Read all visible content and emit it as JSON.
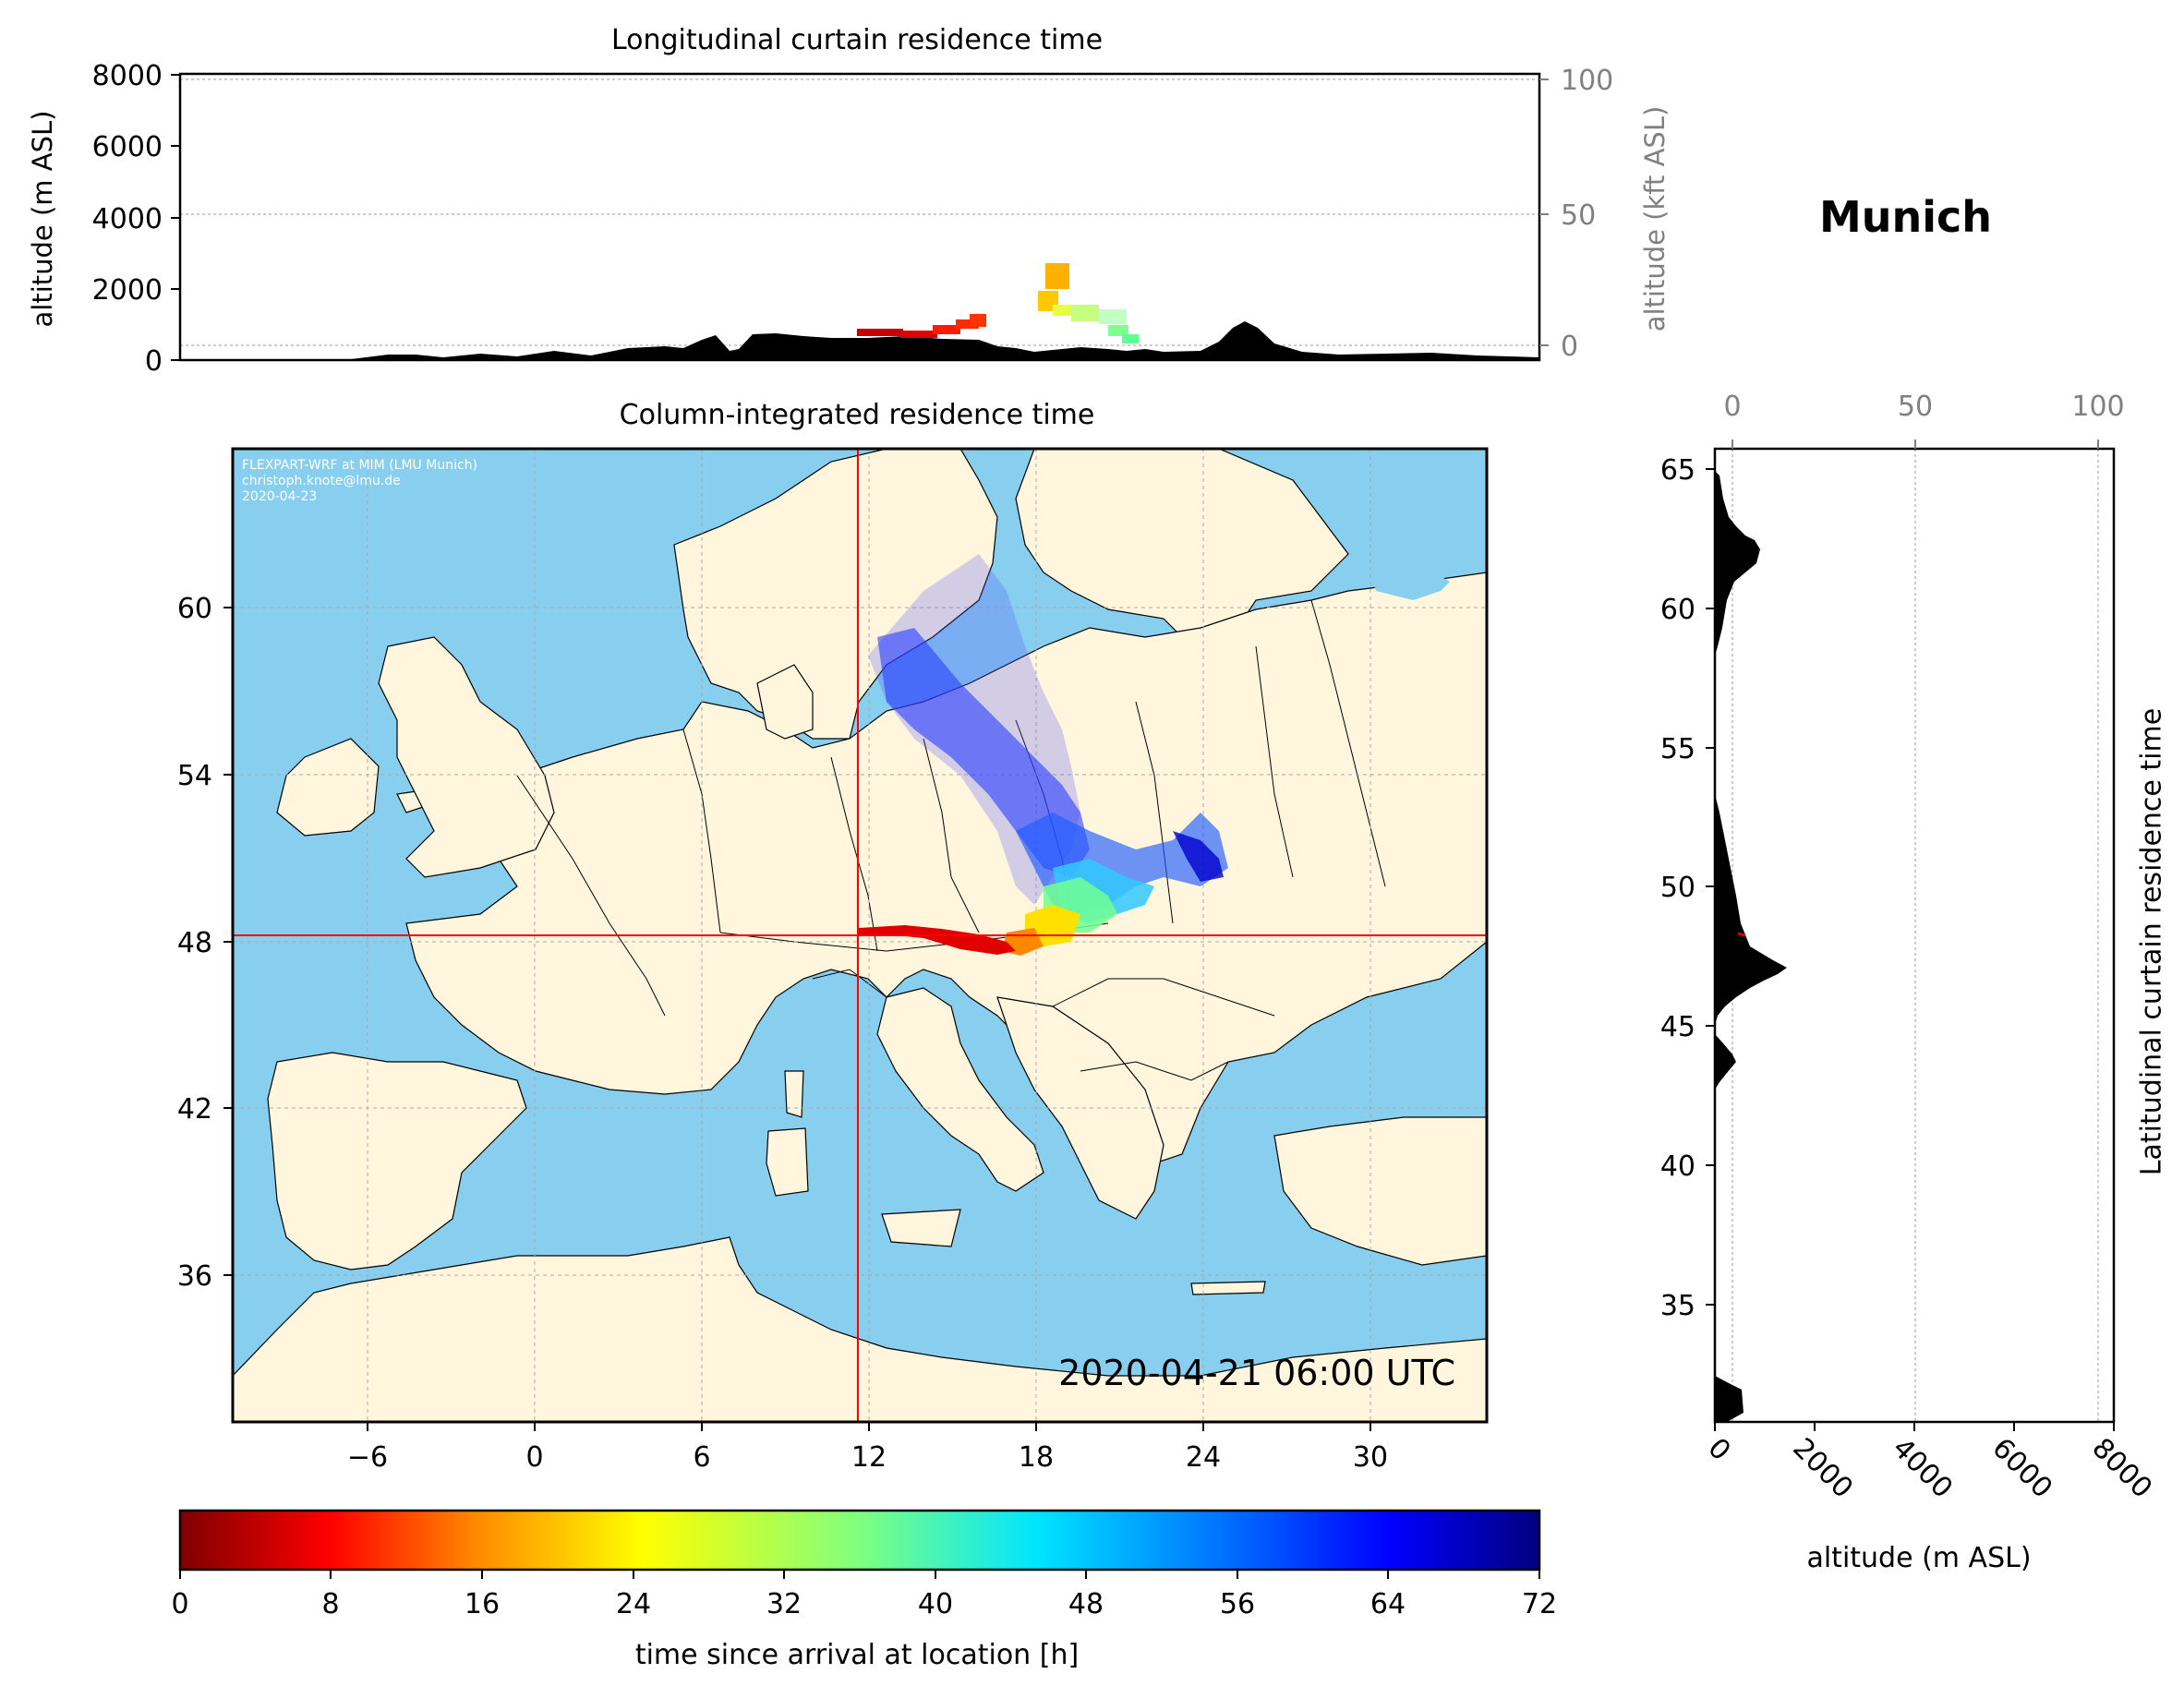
{
  "location": "Munich",
  "timestamp": "2020-04-21 06:00 UTC",
  "credit": [
    "FLEXPART-WRF at MIM (LMU Munich)",
    "christoph.knote@lmu.de",
    "2020-04-23"
  ],
  "top_panel": {
    "title": "Longitudinal curtain residence time",
    "ylabel": "altitude (m ASL)",
    "ylabel_right": "altitude (kft ASL)",
    "yticks": [
      "0",
      "2000",
      "4000",
      "6000",
      "8000"
    ],
    "yticks_right": [
      "0",
      "50",
      "100"
    ]
  },
  "map_panel": {
    "title": "Column-integrated residence time",
    "xticks": [
      "−6",
      "0",
      "6",
      "12",
      "18",
      "24",
      "30"
    ],
    "yticks": [
      "60",
      "54",
      "48",
      "42",
      "36"
    ]
  },
  "side_panel": {
    "ylabel": "Latitudinal curtain residence time",
    "xlabel": "altitude (m ASL)",
    "yticks": [
      "65",
      "60",
      "55",
      "50",
      "45",
      "40",
      "35"
    ],
    "xticks": [
      "0",
      "2000",
      "4000",
      "6000",
      "8000"
    ],
    "xticks_top": [
      "0",
      "50",
      "100"
    ]
  },
  "colorbar": {
    "label": "time since arrival at location [h]",
    "ticks": [
      "0",
      "8",
      "16",
      "24",
      "32",
      "40",
      "48",
      "56",
      "64",
      "72"
    ],
    "colormap": "jet_reversed"
  },
  "colors": {
    "sea": "#87ceef",
    "land": "#fff6dd",
    "crosshair": "#ff0000",
    "terrain": "#000000"
  },
  "chart_data": {
    "type": "heatmap",
    "title": "Column-integrated residence time",
    "xlim": [
      -11,
      34
    ],
    "ylim": [
      31,
      66
    ],
    "release_location": {
      "lon": 11.6,
      "lat": 48.1
    },
    "colorbar_range_h": [
      0,
      72
    ]
  }
}
